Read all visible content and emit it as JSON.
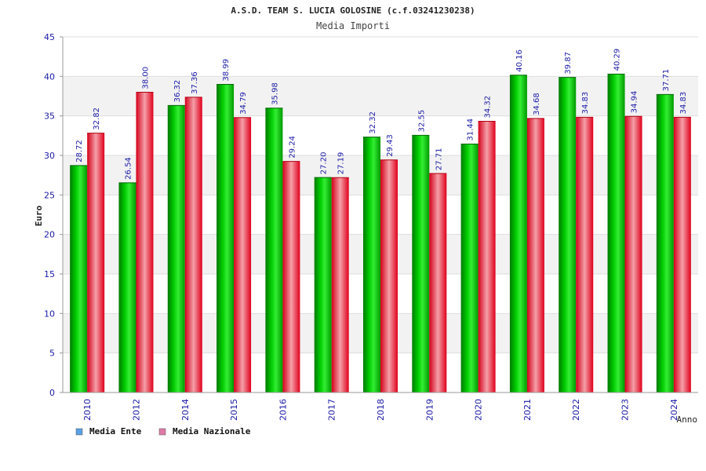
{
  "chart_data": {
    "type": "bar",
    "title": "A.S.D. TEAM S. LUCIA GOLOSINE (c.f.03241230238)",
    "subtitle": "Media Importi",
    "ylabel": "Euro",
    "xlabel": "Anno",
    "ylim": [
      0,
      45
    ],
    "yticks": [
      0,
      5,
      10,
      15,
      20,
      25,
      30,
      35,
      40,
      45
    ],
    "grid": true,
    "legend_position": "bottom-left",
    "categories": [
      "2010",
      "2012",
      "2014",
      "2015",
      "2016",
      "2017",
      "2018",
      "2019",
      "2020",
      "2021",
      "2022",
      "2023",
      "2024"
    ],
    "series": [
      {
        "name": "Media Ente",
        "color": "#00bb00",
        "legend_color": "#5aa0e6",
        "values": [
          28.72,
          26.54,
          36.32,
          38.99,
          35.98,
          27.2,
          32.32,
          32.55,
          31.44,
          40.16,
          39.87,
          40.29,
          37.71
        ],
        "labels": [
          "28.72",
          "26.54",
          "36.32",
          "38.99",
          "35.98",
          "27.20",
          "32.32",
          "32.55",
          "31.44",
          "40.16",
          "39.87",
          "40.29",
          "37.71"
        ]
      },
      {
        "name": "Media Nazionale",
        "color": "#e8142a",
        "legend_color": "#e07aa8",
        "values": [
          32.82,
          38.0,
          37.36,
          34.79,
          29.24,
          27.19,
          29.43,
          27.71,
          34.32,
          34.68,
          34.83,
          34.94,
          34.83
        ],
        "labels": [
          "32.82",
          "38.00",
          "37.36",
          "34.79",
          "29.24",
          "27.19",
          "29.43",
          "27.71",
          "34.32",
          "34.68",
          "34.83",
          "34.94",
          "34.83"
        ]
      }
    ]
  }
}
